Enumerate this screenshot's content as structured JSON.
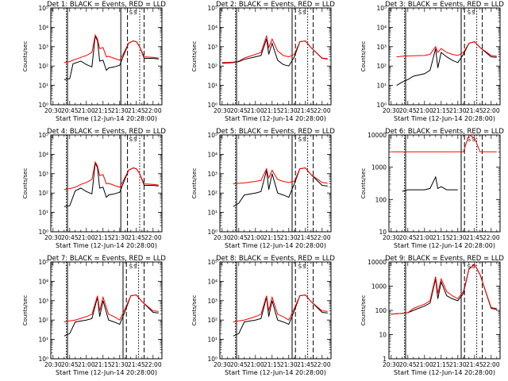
{
  "ylabel": "Counts/sec",
  "xlabel": "Start Time (12-Jun-14 20:28:00)",
  "x_ticks": [
    "20:30",
    "20:45",
    "21:00",
    "21:15",
    "21:30",
    "21:45",
    "22:00"
  ],
  "x_range": [
    "20:28",
    "22:08"
  ],
  "legend_note": "S",
  "series_colors": {
    "events": "#000000",
    "lld": "#ff0000"
  },
  "chart_data": [
    {
      "title": "Det 1: BLACK = Events, RED = LLD",
      "type": "line",
      "scale": "log",
      "ylim": [
        1,
        100000
      ],
      "y_ticks": [
        "10⁰",
        "10¹",
        "10²",
        "10³",
        "10⁴",
        "10⁵"
      ],
      "series": [
        {
          "name": "BLACK = Events",
          "x": [
            "20:40",
            "20:45",
            "20:48",
            "20:55",
            "21:00",
            "21:05",
            "21:08",
            "21:10",
            "21:12",
            "21:15",
            "21:18",
            "21:20",
            "21:25",
            "21:30",
            "21:33",
            "21:38",
            "21:42",
            "21:45",
            "21:48",
            "21:52",
            "22:00",
            "22:05"
          ],
          "values": [
            20,
            22,
            130,
            180,
            120,
            90,
            3500,
            2000,
            180,
            200,
            60,
            80,
            90,
            110,
            300,
            1500,
            2000,
            1800,
            1000,
            250,
            250,
            230
          ]
        },
        {
          "name": "RED = LLD",
          "x": [
            "20:40",
            "20:45",
            "20:48",
            "20:55",
            "21:00",
            "21:05",
            "21:08",
            "21:10",
            "21:12",
            "21:15",
            "21:18",
            "21:20",
            "21:25",
            "21:30",
            "21:33",
            "21:38",
            "21:42",
            "21:45",
            "21:48",
            "21:52",
            "22:00",
            "22:05"
          ],
          "values": [
            150,
            170,
            200,
            280,
            350,
            500,
            4000,
            2500,
            800,
            900,
            300,
            320,
            250,
            200,
            400,
            1500,
            2000,
            1800,
            1000,
            300,
            280,
            260
          ]
        }
      ],
      "vlines": {
        "solid": [
          "20:43",
          "21:31"
        ],
        "dashed": [
          "21:37",
          "21:52"
        ],
        "dotted": [
          "20:42",
          "21:48"
        ]
      }
    },
    {
      "title": "Det 2: BLACK = Events, RED = LLD",
      "type": "line",
      "scale": "log",
      "ylim": [
        1,
        100000
      ],
      "y_ticks": [
        "10⁰",
        "10¹",
        "10²",
        "10³",
        "10⁴",
        "10⁵"
      ],
      "series": [
        {
          "name": "BLACK = Events",
          "x": [
            "20:30",
            "20:40",
            "20:45",
            "20:50",
            "21:00",
            "21:05",
            "21:10",
            "21:12",
            "21:15",
            "21:20",
            "21:25",
            "21:30",
            "21:35",
            "21:40",
            "21:45",
            "21:50",
            "22:00",
            "22:05"
          ],
          "values": [
            140,
            150,
            170,
            220,
            300,
            350,
            2500,
            400,
            1500,
            200,
            120,
            100,
            300,
            1800,
            2000,
            900,
            250,
            230
          ]
        },
        {
          "name": "RED = LLD",
          "x": [
            "20:30",
            "20:40",
            "20:45",
            "20:50",
            "21:00",
            "21:05",
            "21:10",
            "21:12",
            "21:15",
            "21:20",
            "21:25",
            "21:30",
            "21:35",
            "21:40",
            "21:45",
            "21:50",
            "22:00",
            "22:05"
          ],
          "values": [
            150,
            160,
            180,
            260,
            400,
            500,
            3500,
            900,
            2500,
            600,
            350,
            300,
            400,
            1800,
            2000,
            900,
            260,
            240
          ]
        }
      ],
      "vlines": {
        "solid": [
          "20:43",
          "21:33"
        ],
        "dashed": [
          "21:36",
          "21:52"
        ],
        "dotted": [
          "20:42",
          "21:47"
        ]
      }
    },
    {
      "title": "Det 3: BLACK = Events, RED = LLD",
      "type": "line",
      "scale": "log",
      "ylim": [
        1,
        100000
      ],
      "y_ticks": [
        "10⁰",
        "10¹",
        "10²",
        "10³",
        "10⁴",
        "10⁵"
      ],
      "series": [
        {
          "name": "BLACK = Events",
          "x": [
            "20:35",
            "20:40",
            "20:45",
            "20:50",
            "21:00",
            "21:05",
            "21:10",
            "21:12",
            "21:15",
            "21:20",
            "21:25",
            "21:30",
            "21:35",
            "21:40",
            "21:45",
            "21:50",
            "22:00",
            "22:05"
          ],
          "values": [
            10,
            15,
            20,
            30,
            40,
            60,
            800,
            80,
            500,
            300,
            200,
            150,
            400,
            1500,
            1800,
            900,
            300,
            280
          ]
        },
        {
          "name": "RED = LLD",
          "x": [
            "20:35",
            "20:40",
            "20:45",
            "20:50",
            "21:00",
            "21:05",
            "21:10",
            "21:12",
            "21:15",
            "21:20",
            "21:25",
            "21:30",
            "21:35",
            "21:40",
            "21:45",
            "21:50",
            "22:00",
            "22:05"
          ],
          "values": [
            300,
            320,
            330,
            340,
            350,
            400,
            1000,
            500,
            800,
            500,
            400,
            350,
            500,
            1500,
            1800,
            900,
            350,
            320
          ]
        }
      ],
      "vlines": {
        "solid": [
          "20:43",
          "21:33"
        ],
        "dashed": [
          "21:36",
          "21:52"
        ],
        "dotted": [
          "20:42",
          "21:47"
        ]
      }
    },
    {
      "title": "Det 4: BLACK = Events, RED = LLD",
      "type": "line",
      "scale": "log",
      "ylim": [
        1,
        100000
      ],
      "y_ticks": [
        "10⁰",
        "10¹",
        "10²",
        "10³",
        "10⁴",
        "10⁵"
      ],
      "series": [
        {
          "name": "BLACK = Events",
          "x": [
            "20:40",
            "20:45",
            "20:50",
            "20:55",
            "21:00",
            "21:05",
            "21:08",
            "21:10",
            "21:12",
            "21:15",
            "21:18",
            "21:20",
            "21:25",
            "21:30",
            "21:33",
            "21:38",
            "21:42",
            "21:45",
            "21:48",
            "21:52",
            "22:00",
            "22:05"
          ],
          "values": [
            20,
            22,
            130,
            180,
            120,
            90,
            3500,
            2000,
            180,
            200,
            60,
            80,
            90,
            110,
            300,
            1500,
            2000,
            1800,
            1000,
            250,
            250,
            230
          ]
        },
        {
          "name": "RED = LLD",
          "x": [
            "20:40",
            "20:45",
            "20:50",
            "20:55",
            "21:00",
            "21:05",
            "21:08",
            "21:10",
            "21:12",
            "21:15",
            "21:18",
            "21:20",
            "21:25",
            "21:30",
            "21:33",
            "21:38",
            "21:42",
            "21:45",
            "21:48",
            "21:52",
            "22:00",
            "22:05"
          ],
          "values": [
            150,
            170,
            200,
            280,
            350,
            500,
            4000,
            2500,
            800,
            900,
            300,
            320,
            250,
            200,
            400,
            1500,
            2000,
            1800,
            1000,
            300,
            280,
            260
          ]
        }
      ],
      "vlines": {
        "solid": [
          "20:43",
          "21:31"
        ],
        "dashed": [
          "21:37",
          "21:52"
        ],
        "dotted": [
          "20:42",
          "21:48"
        ]
      }
    },
    {
      "title": "Det 5: BLACK = Events, RED = LLD",
      "type": "line",
      "scale": "log",
      "ylim": [
        1,
        100000
      ],
      "y_ticks": [
        "10⁰",
        "10¹",
        "10²",
        "10³",
        "10⁴",
        "10⁵"
      ],
      "series": [
        {
          "name": "BLACK = Events",
          "x": [
            "20:40",
            "20:45",
            "20:50",
            "21:00",
            "21:05",
            "21:10",
            "21:12",
            "21:15",
            "21:20",
            "21:25",
            "21:30",
            "21:35",
            "21:40",
            "21:45",
            "21:50",
            "22:00",
            "22:05"
          ],
          "values": [
            20,
            30,
            80,
            100,
            120,
            1500,
            150,
            1000,
            100,
            80,
            60,
            300,
            1800,
            2000,
            900,
            250,
            230
          ]
        },
        {
          "name": "RED = LLD",
          "x": [
            "20:40",
            "20:45",
            "20:50",
            "21:00",
            "21:05",
            "21:10",
            "21:12",
            "21:15",
            "21:20",
            "21:25",
            "21:30",
            "21:35",
            "21:40",
            "21:45",
            "21:50",
            "22:00",
            "22:05"
          ],
          "values": [
            300,
            320,
            330,
            400,
            450,
            1800,
            600,
            1500,
            500,
            400,
            350,
            400,
            1800,
            2000,
            900,
            350,
            320
          ]
        }
      ],
      "vlines": {
        "solid": [
          "20:43",
          "21:33"
        ],
        "dashed": [
          "21:36",
          "21:52"
        ],
        "dotted": [
          "20:42",
          "21:47"
        ]
      }
    },
    {
      "title": "Det 6: BLACK = Events, RED = LLD",
      "type": "line",
      "scale": "log",
      "ylim": [
        10,
        10000
      ],
      "y_ticks": [
        "10",
        "100",
        "1000",
        "10000"
      ],
      "series": [
        {
          "name": "BLACK = Events",
          "x": [
            "20:40",
            "20:45",
            "20:50",
            "21:00",
            "21:05",
            "21:10",
            "21:12",
            "21:15",
            "21:20",
            "21:25",
            "21:30"
          ],
          "values": [
            180,
            200,
            200,
            200,
            220,
            500,
            220,
            250,
            200,
            200,
            200
          ]
        },
        {
          "name": "RED = LLD",
          "x": [
            "20:30",
            "20:40",
            "21:00",
            "21:20",
            "21:35",
            "21:40",
            "21:45",
            "21:50",
            "22:00",
            "22:05"
          ],
          "values": [
            3000,
            3000,
            3000,
            3000,
            3000,
            10000,
            8000,
            3000,
            3000,
            3000
          ]
        }
      ],
      "vlines": {
        "solid": [
          "20:43",
          "21:33"
        ],
        "dashed": [
          "21:36",
          "21:52"
        ],
        "dotted": [
          "20:42",
          "21:47"
        ]
      }
    },
    {
      "title": "Det 7: BLACK = Events, RED = LLD",
      "type": "line",
      "scale": "log",
      "ylim": [
        1,
        100000
      ],
      "y_ticks": [
        "10⁰",
        "10¹",
        "10²",
        "10³",
        "10⁴",
        "10⁵"
      ],
      "series": [
        {
          "name": "BLACK = Events",
          "x": [
            "20:40",
            "20:45",
            "20:50",
            "21:00",
            "21:05",
            "21:10",
            "21:12",
            "21:15",
            "21:20",
            "21:25",
            "21:30",
            "21:35",
            "21:40",
            "21:45",
            "21:50",
            "22:00",
            "22:05"
          ],
          "values": [
            15,
            20,
            80,
            100,
            120,
            1500,
            150,
            1000,
            100,
            80,
            60,
            300,
            1800,
            2000,
            900,
            250,
            230
          ]
        },
        {
          "name": "RED = LLD",
          "x": [
            "20:40",
            "20:45",
            "20:50",
            "21:00",
            "21:05",
            "21:10",
            "21:12",
            "21:15",
            "21:20",
            "21:25",
            "21:30",
            "21:35",
            "21:40",
            "21:45",
            "21:50",
            "22:00",
            "22:05"
          ],
          "values": [
            80,
            90,
            100,
            150,
            200,
            1800,
            300,
            1500,
            200,
            150,
            100,
            400,
            1800,
            2000,
            900,
            300,
            280
          ]
        }
      ],
      "vlines": {
        "solid": [
          "20:43",
          "21:33"
        ],
        "dashed": [
          "21:36",
          "21:52"
        ],
        "dotted": [
          "20:42",
          "21:47"
        ]
      }
    },
    {
      "title": "Det 8: BLACK = Events, RED = LLD",
      "type": "line",
      "scale": "log",
      "ylim": [
        1,
        100000
      ],
      "y_ticks": [
        "10⁰",
        "10¹",
        "10²",
        "10³",
        "10⁴",
        "10⁵"
      ],
      "series": [
        {
          "name": "BLACK = Events",
          "x": [
            "20:40",
            "20:45",
            "20:50",
            "21:00",
            "21:05",
            "21:10",
            "21:12",
            "21:15",
            "21:20",
            "21:25",
            "21:30",
            "21:35",
            "21:40",
            "21:45",
            "21:50",
            "22:00",
            "22:05"
          ],
          "values": [
            15,
            20,
            80,
            100,
            120,
            1500,
            150,
            1000,
            100,
            80,
            60,
            300,
            1800,
            2000,
            900,
            250,
            230
          ]
        },
        {
          "name": "RED = LLD",
          "x": [
            "20:40",
            "20:45",
            "20:50",
            "21:00",
            "21:05",
            "21:10",
            "21:12",
            "21:15",
            "21:20",
            "21:25",
            "21:30",
            "21:35",
            "21:40",
            "21:45",
            "21:50",
            "22:00",
            "22:05"
          ],
          "values": [
            80,
            90,
            100,
            150,
            200,
            1800,
            300,
            1500,
            200,
            150,
            100,
            400,
            1800,
            2000,
            900,
            300,
            280
          ]
        }
      ],
      "vlines": {
        "solid": [
          "20:43",
          "21:33"
        ],
        "dashed": [
          "21:36",
          "21:52"
        ],
        "dotted": [
          "20:42",
          "21:47"
        ]
      }
    },
    {
      "title": "Det 9: BLACK = Events, RED = LLD",
      "type": "line",
      "scale": "log",
      "ylim": [
        1,
        10000
      ],
      "y_ticks": [
        "1",
        "10",
        "100",
        "1000",
        "10000"
      ],
      "series": [
        {
          "name": "BLACK = Events",
          "x": [
            "20:30",
            "20:40",
            "20:45",
            "20:50",
            "21:00",
            "21:05",
            "21:10",
            "21:12",
            "21:15",
            "21:20",
            "21:25",
            "21:30",
            "21:35",
            "21:40",
            "21:45",
            "21:50",
            "22:00",
            "22:05"
          ],
          "values": [
            70,
            75,
            80,
            100,
            150,
            200,
            2000,
            300,
            1500,
            400,
            300,
            250,
            500,
            5000,
            8000,
            3000,
            120,
            110
          ]
        },
        {
          "name": "RED = LLD",
          "x": [
            "20:30",
            "20:40",
            "20:45",
            "20:50",
            "21:00",
            "21:05",
            "21:10",
            "21:12",
            "21:15",
            "21:20",
            "21:25",
            "21:30",
            "21:35",
            "21:40",
            "21:45",
            "21:50",
            "22:00",
            "22:05"
          ],
          "values": [
            70,
            75,
            80,
            120,
            180,
            250,
            2500,
            500,
            2000,
            600,
            400,
            300,
            600,
            5000,
            8000,
            3000,
            130,
            120
          ]
        }
      ],
      "vlines": {
        "solid": [
          "20:43",
          "21:33"
        ],
        "dashed": [
          "21:36",
          "21:52"
        ],
        "dotted": [
          "20:42",
          "21:47"
        ]
      }
    }
  ]
}
